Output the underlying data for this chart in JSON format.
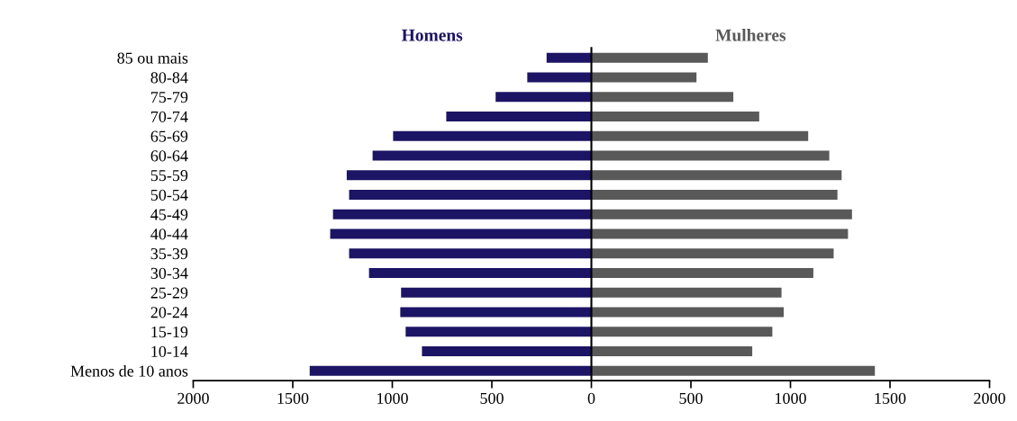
{
  "chart_data": {
    "type": "bar",
    "orientation": "horizontal",
    "stacked": true,
    "categories": [
      "85 ou mais",
      "80-84",
      "75-79",
      "70-74",
      "65-69",
      "60-64",
      "55-59",
      "50-54",
      "45-49",
      "40-44",
      "35-39",
      "30-34",
      "25-29",
      "20-24",
      "15-19",
      "10-14",
      "Menos de 10 anos"
    ],
    "series": [
      {
        "name": "Homens",
        "color": "#1c1464",
        "values": [
          -225,
          -322,
          -481,
          -729,
          -996,
          -1099,
          -1229,
          -1217,
          -1298,
          -1312,
          -1217,
          -1117,
          -956,
          -960,
          -933,
          -851,
          -1415
        ]
      },
      {
        "name": "Mulheres",
        "color": "#595959",
        "values": [
          585,
          528,
          713,
          843,
          1089,
          1195,
          1257,
          1236,
          1309,
          1289,
          1217,
          1115,
          955,
          966,
          909,
          808,
          1424
        ]
      }
    ],
    "xlim": [
      -2000,
      2000
    ],
    "xticks": [
      {
        "value": -2000,
        "label": "2000"
      },
      {
        "value": -1500,
        "label": "1500"
      },
      {
        "value": -1000,
        "label": "1000"
      },
      {
        "value": -500,
        "label": "500"
      },
      0,
      500,
      1000,
      1500,
      2000
    ],
    "legend": false
  }
}
